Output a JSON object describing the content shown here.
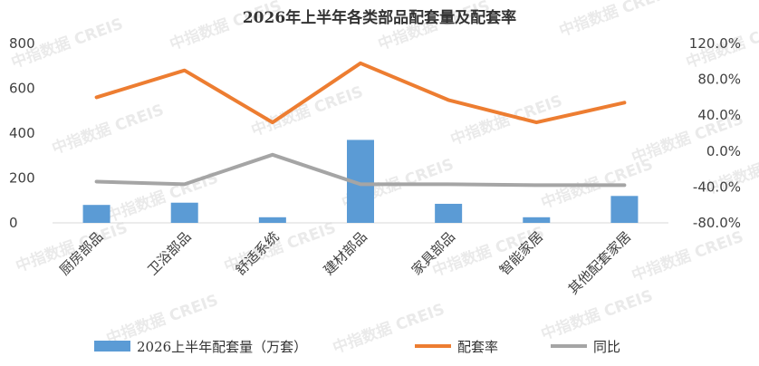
{
  "watermark": "中指数据 CREIS",
  "chart_data": {
    "type": "bar",
    "title": "2026年上半年各类部品配套量及配套率",
    "categories": [
      "厨房部品",
      "卫浴部品",
      "舒适系统",
      "建材部品",
      "家具部品",
      "智能家居",
      "其他配套家居"
    ],
    "left_axis": {
      "ticks": [
        "800",
        "600",
        "400",
        "200",
        "0"
      ],
      "ylim": [
        0,
        800
      ]
    },
    "right_axis": {
      "ticks": [
        "120.0%",
        "80.0%",
        "40.0%",
        "0.0%",
        "-40.0%",
        "-80.0%"
      ],
      "ylim": [
        -80,
        120
      ]
    },
    "series": [
      {
        "name": "2026上半年配套量（万套）",
        "type": "bar",
        "axis": "left",
        "color": "#5b9bd5",
        "values": [
          80,
          90,
          25,
          370,
          85,
          25,
          120
        ]
      },
      {
        "name": "配套率",
        "type": "line",
        "axis": "right",
        "color": "#ed7d31",
        "values": [
          60,
          90,
          32,
          98,
          57,
          32,
          54
        ]
      },
      {
        "name": "同比",
        "type": "line",
        "axis": "right",
        "color": "#a5a5a5",
        "values": [
          -34,
          -37,
          -4,
          -37,
          -37,
          -38,
          -38
        ]
      }
    ],
    "grid": false,
    "legend": "bottom"
  }
}
